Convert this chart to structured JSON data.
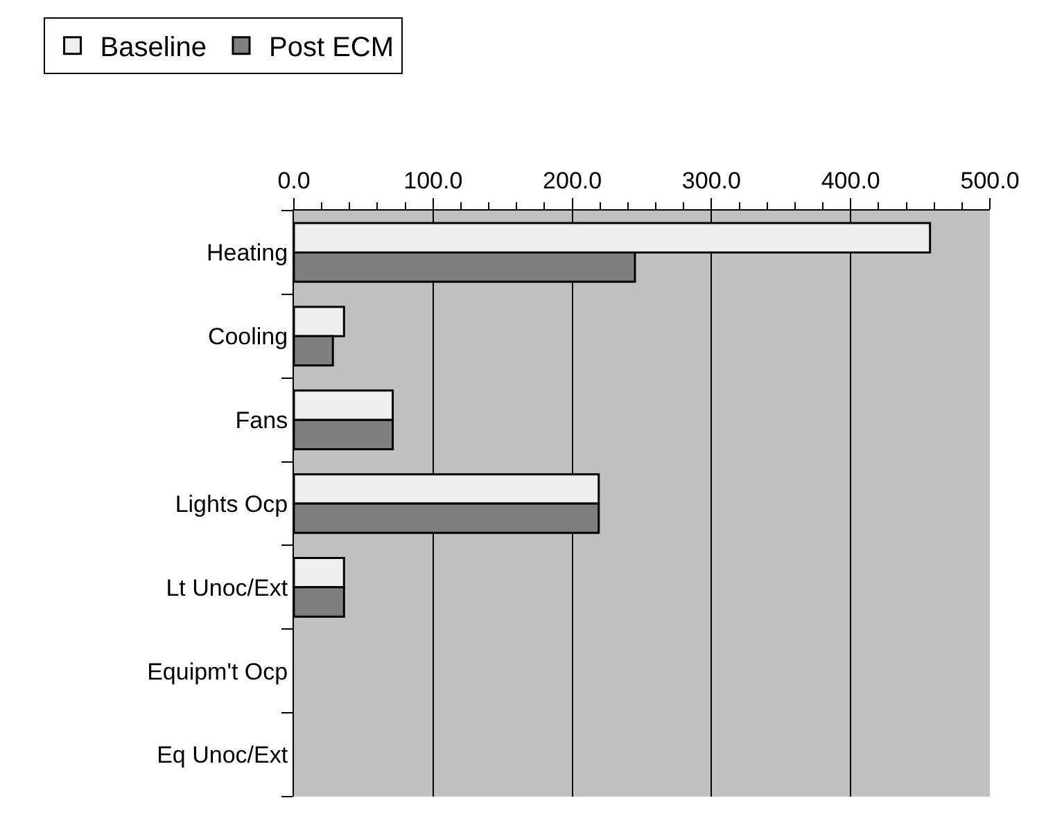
{
  "chart_data": {
    "type": "bar",
    "orientation": "horizontal",
    "categories": [
      "Heating",
      "Cooling",
      "Fans",
      "Lights Ocp",
      "Lt Unoc/Ext",
      "Equipm't Ocp",
      "Eq Unoc/Ext"
    ],
    "series": [
      {
        "name": "Baseline",
        "color": "#eeeeee",
        "values": [
          457,
          36,
          71,
          219,
          36,
          0,
          0
        ]
      },
      {
        "name": "Post ECM",
        "color": "#7f7f7f",
        "values": [
          245,
          28,
          71,
          219,
          36,
          0,
          0
        ]
      }
    ],
    "xlim": [
      0,
      500
    ],
    "xticks": [
      {
        "value": 0,
        "label": "0.0"
      },
      {
        "value": 20,
        "label": null
      },
      {
        "value": 40,
        "label": null
      },
      {
        "value": 60,
        "label": null
      },
      {
        "value": 80,
        "label": null
      },
      {
        "value": 100,
        "label": "100.0"
      },
      {
        "value": 120,
        "label": null
      },
      {
        "value": 140,
        "label": null
      },
      {
        "value": 160,
        "label": null
      },
      {
        "value": 180,
        "label": null
      },
      {
        "value": 200,
        "label": "200.0"
      },
      {
        "value": 220,
        "label": null
      },
      {
        "value": 240,
        "label": null
      },
      {
        "value": 260,
        "label": null
      },
      {
        "value": 280,
        "label": null
      },
      {
        "value": 300,
        "label": "300.0"
      },
      {
        "value": 320,
        "label": null
      },
      {
        "value": 340,
        "label": null
      },
      {
        "value": 360,
        "label": null
      },
      {
        "value": 380,
        "label": null
      },
      {
        "value": 400,
        "label": "400.0"
      },
      {
        "value": 420,
        "label": null
      },
      {
        "value": 440,
        "label": null
      },
      {
        "value": 460,
        "label": null
      },
      {
        "value": 480,
        "label": null
      },
      {
        "value": 500,
        "label": "500.0"
      }
    ],
    "grid": "x",
    "legend": "top left"
  }
}
